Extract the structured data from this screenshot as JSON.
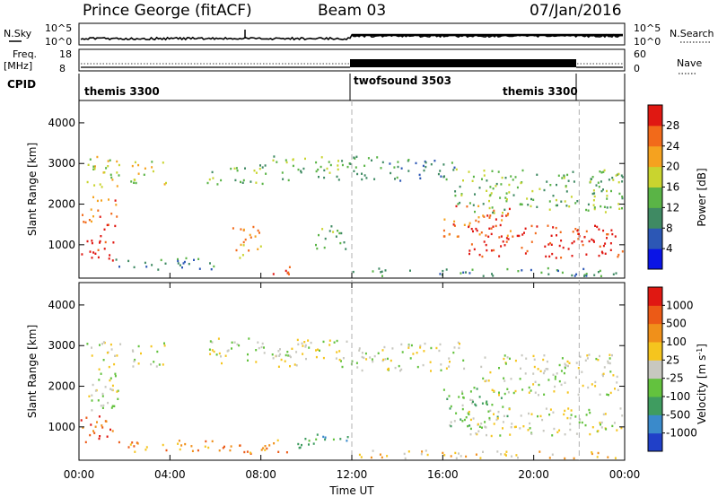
{
  "header": {
    "station": "Prince George (fitACF)",
    "beam": "Beam 03",
    "date": "07/Jan/2016"
  },
  "noise_panel": {
    "left_label": "N.Sky",
    "right_label": "N.Search",
    "ticks_left": [
      "10^5",
      "10^0"
    ],
    "ticks_right": [
      "10^5",
      "10^0"
    ]
  },
  "freq_panel": {
    "left_label_top": "Freq.",
    "left_label_unit": "[MHz]",
    "right_label": "Nave",
    "ticks_left": [
      "18",
      "8"
    ],
    "ticks_right": [
      "60",
      "0"
    ]
  },
  "cpid_panel": {
    "label": "CPID",
    "segments": [
      {
        "name": "themis 3300",
        "start_hour": 0,
        "end_hour": 12
      },
      {
        "name": "twofsound 3503",
        "start_hour": 12,
        "end_hour": 22
      },
      {
        "name": "themis 3300",
        "start_hour": 22,
        "end_hour": 24
      }
    ]
  },
  "chart_data": [
    {
      "type": "heatmap",
      "title": "",
      "ylabel": "Slant Range [km]",
      "ylim": [
        180,
        4550
      ],
      "yticks": [
        "1000",
        "2000",
        "3000",
        "4000"
      ],
      "xlim_hours": [
        0,
        24
      ],
      "colorbar": {
        "label": "Power [dB]",
        "ticks": [
          "4",
          "8",
          "12",
          "16",
          "20",
          "24",
          "28"
        ],
        "colors": [
          "#0a14e6",
          "#2c57b5",
          "#3f8a63",
          "#5ab446",
          "#c9d42f",
          "#f5a21f",
          "#f26a1a",
          "#e01812"
        ]
      },
      "regions": [
        {
          "t": [
            0.0,
            1.6
          ],
          "r": [
            600,
            1300
          ],
          "level": 7
        },
        {
          "t": [
            0.0,
            0.5
          ],
          "r": [
            1350,
            1800
          ],
          "level": 6
        },
        {
          "t": [
            0.5,
            1.7
          ],
          "r": [
            1400,
            2200
          ],
          "level": 6
        },
        {
          "t": [
            0.3,
            1.8
          ],
          "r": [
            2300,
            3200
          ],
          "level": 4
        },
        {
          "t": [
            2.2,
            3.8
          ],
          "r": [
            2500,
            3100
          ],
          "level": 4
        },
        {
          "t": [
            6.6,
            8.0
          ],
          "r": [
            700,
            1500
          ],
          "level": 5
        },
        {
          "t": [
            8.0,
            9.3
          ],
          "r": [
            300,
            550
          ],
          "level": 7
        },
        {
          "t": [
            5.5,
            8.3
          ],
          "r": [
            2500,
            3000
          ],
          "level": 3
        },
        {
          "t": [
            8.5,
            12.0
          ],
          "r": [
            2600,
            3200
          ],
          "level": 3
        },
        {
          "t": [
            10.2,
            11.7
          ],
          "r": [
            900,
            1500
          ],
          "level": 3
        },
        {
          "t": [
            1.5,
            6.0
          ],
          "r": [
            400,
            700
          ],
          "level": 2
        },
        {
          "t": [
            12.0,
            16.5
          ],
          "r": [
            2600,
            3200
          ],
          "level": 2
        },
        {
          "t": [
            16.0,
            19.0
          ],
          "r": [
            1200,
            2000
          ],
          "level": 6
        },
        {
          "t": [
            17.0,
            24.0
          ],
          "r": [
            700,
            1500
          ],
          "level": 7
        },
        {
          "t": [
            16.5,
            24.0
          ],
          "r": [
            1800,
            2900
          ],
          "level": 3
        },
        {
          "t": [
            12.0,
            24.0
          ],
          "r": [
            250,
            450
          ],
          "level": 2
        }
      ]
    },
    {
      "type": "heatmap",
      "title": "",
      "ylabel": "Slant Range [km]",
      "ylim": [
        180,
        4550
      ],
      "yticks": [
        "1000",
        "2000",
        "3000",
        "4000"
      ],
      "xlim_hours": [
        0,
        24
      ],
      "xticks": [
        "00:00",
        "04:00",
        "08:00",
        "12:00",
        "16:00",
        "20:00",
        "00:00"
      ],
      "xlabel": "Time UT",
      "colorbar": {
        "label": "Velocity [m s-1]",
        "ticks": [
          "1000",
          "500",
          "100",
          "25",
          "-25",
          "-100",
          "-500",
          "-1000"
        ],
        "colors": [
          "#2040c8",
          "#3a8acb",
          "#3f9c60",
          "#63c23e",
          "#c8c8c0",
          "#f5c51e",
          "#f0901a",
          "#ec5a16",
          "#e01812"
        ]
      },
      "regions": [
        {
          "t": [
            0.0,
            1.6
          ],
          "r": [
            600,
            1300
          ],
          "level": 7
        },
        {
          "t": [
            0.3,
            1.8
          ],
          "r": [
            1400,
            3200
          ],
          "level": 4
        },
        {
          "t": [
            2.2,
            3.8
          ],
          "r": [
            2500,
            3100
          ],
          "level": 4
        },
        {
          "t": [
            1.5,
            6.5
          ],
          "r": [
            400,
            700
          ],
          "level": 6
        },
        {
          "t": [
            6.6,
            9.5
          ],
          "r": [
            350,
            700
          ],
          "level": 6
        },
        {
          "t": [
            9.5,
            11.8
          ],
          "r": [
            500,
            900
          ],
          "level": 2
        },
        {
          "t": [
            5.5,
            12.0
          ],
          "r": [
            2500,
            3200
          ],
          "level": 4
        },
        {
          "t": [
            12.0,
            17.0
          ],
          "r": [
            2400,
            3100
          ],
          "level": 4
        },
        {
          "t": [
            16.0,
            19.0
          ],
          "r": [
            1000,
            2000
          ],
          "level": 3
        },
        {
          "t": [
            17.0,
            24.0
          ],
          "r": [
            800,
            1500
          ],
          "level": 4
        },
        {
          "t": [
            12.0,
            24.0
          ],
          "r": [
            250,
            450
          ],
          "level": 5
        },
        {
          "t": [
            17.5,
            24.0
          ],
          "r": [
            1800,
            2800
          ],
          "level": 4
        }
      ]
    }
  ],
  "ui": {
    "colors": {
      "grid_dash": "#b0b0b0"
    }
  }
}
